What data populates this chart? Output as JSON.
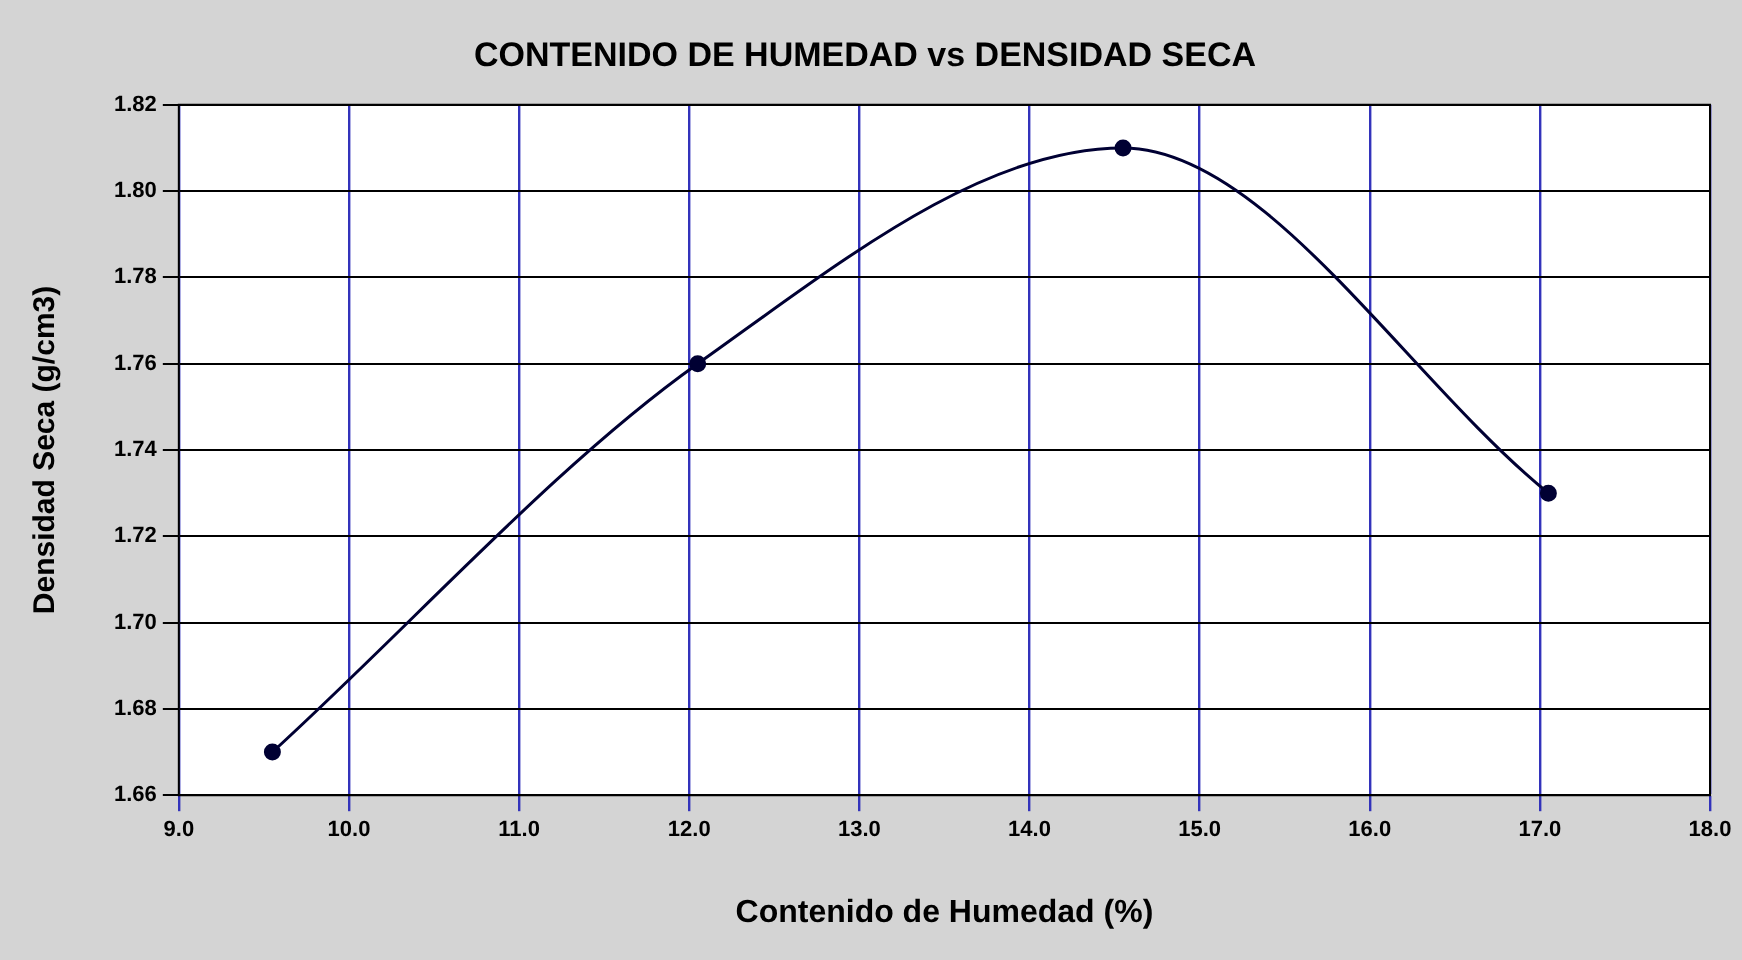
{
  "chart_data": {
    "type": "line",
    "title": "CONTENIDO DE HUMEDAD vs DENSIDAD SECA",
    "xlabel": "Contenido de Humedad (%)",
    "ylabel": "Densidad Seca (g/cm3)",
    "x": [
      9.55,
      12.05,
      14.55,
      17.05
    ],
    "series": [
      {
        "color": "#000033",
        "values": [
          1.67,
          1.76,
          1.81,
          1.73
        ]
      }
    ],
    "xlim": [
      9,
      18
    ],
    "xticks": [
      {
        "value": 9,
        "label": "9.0"
      },
      {
        "value": 10,
        "label": "10.0"
      },
      {
        "value": 11,
        "label": "11.0"
      },
      {
        "value": 12,
        "label": "12.0"
      },
      {
        "value": 13,
        "label": "13.0"
      },
      {
        "value": 14,
        "label": "14.0"
      },
      {
        "value": 15,
        "label": "15.0"
      },
      {
        "value": 16,
        "label": "16.0"
      },
      {
        "value": 17,
        "label": "17.0"
      },
      {
        "value": 18,
        "label": "18.0"
      }
    ],
    "ylim": [
      1.66,
      1.82
    ],
    "yticks": [
      {
        "value": 1.66,
        "label": "1.66"
      },
      {
        "value": 1.68,
        "label": "1.68"
      },
      {
        "value": 1.7,
        "label": "1.70"
      },
      {
        "value": 1.72,
        "label": "1.72"
      },
      {
        "value": 1.74,
        "label": "1.74"
      },
      {
        "value": 1.76,
        "label": "1.76"
      },
      {
        "value": 1.78,
        "label": "1.78"
      },
      {
        "value": 1.8,
        "label": "1.80"
      },
      {
        "value": 1.82,
        "label": "1.82"
      }
    ],
    "grid": true,
    "legend": false,
    "marker": "circle",
    "line_style": "solid"
  }
}
